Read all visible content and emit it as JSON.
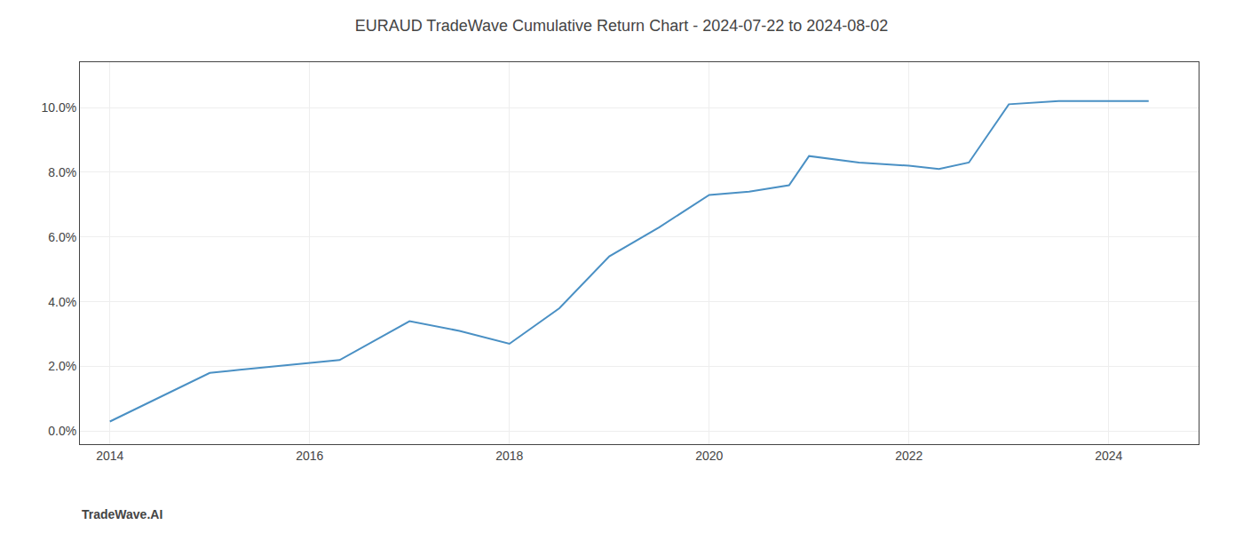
{
  "chart_data": {
    "type": "line",
    "title": "EURAUD TradeWave Cumulative Return Chart - 2024-07-22 to 2024-08-02",
    "annotations": [
      "TradeWave.AI"
    ],
    "x": [
      2014.0,
      2014.6,
      2015.0,
      2015.3,
      2016.0,
      2016.3,
      2017.0,
      2017.5,
      2018.0,
      2018.5,
      2019.0,
      2019.5,
      2020.0,
      2020.4,
      2020.8,
      2021.0,
      2021.5,
      2022.0,
      2022.3,
      2022.6,
      2023.0,
      2023.5,
      2024.0,
      2024.4
    ],
    "values": [
      0.003,
      0.012,
      0.018,
      0.019,
      0.021,
      0.022,
      0.034,
      0.031,
      0.027,
      0.038,
      0.054,
      0.063,
      0.073,
      0.074,
      0.076,
      0.085,
      0.083,
      0.082,
      0.081,
      0.083,
      0.101,
      0.102,
      0.102,
      0.102
    ],
    "color": "#4a90c4",
    "xlim": [
      2013.7,
      2024.9
    ],
    "ylim": [
      -0.004,
      0.114
    ],
    "xticks": [
      2014,
      2016,
      2018,
      2020,
      2022,
      2024
    ],
    "yticks": [
      {
        "value": 0.0,
        "label": "0.0%"
      },
      {
        "value": 0.02,
        "label": "2.0%"
      },
      {
        "value": 0.04,
        "label": "4.0%"
      },
      {
        "value": 0.06,
        "label": "6.0%"
      },
      {
        "value": 0.08,
        "label": "8.0%"
      },
      {
        "value": 0.1,
        "label": "10.0%"
      }
    ],
    "grid": true
  }
}
